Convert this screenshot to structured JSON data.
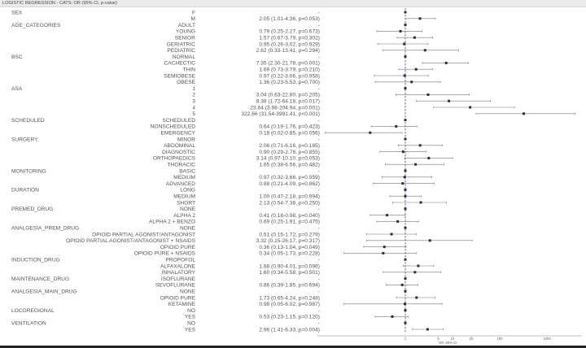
{
  "title": "LOGISTIC REGRESSION - CATS: OR (95% CI, p-value)",
  "chart_data": {
    "type": "forest",
    "title": "LOGISTIC REGRESSION - CATS: OR (95% CI, p-value)",
    "xlabel": "OR, 95% CI",
    "xscale": "log",
    "xticks": [
      1,
      5,
      10,
      25,
      100,
      1000
    ],
    "xtick_labels": [
      "1",
      "5",
      "10",
      "25",
      "100",
      "1000"
    ],
    "reference_line": 1,
    "colors": {
      "point": "#2a2d4a",
      "ci": "#777777",
      "reference": "#333333"
    },
    "rows": [
      {
        "group": "SEX",
        "level": "F",
        "or": 1,
        "text": "-"
      },
      {
        "group": "",
        "level": "M",
        "or": 2.05,
        "lo": 1.01,
        "hi": 4.36,
        "p": "0.053",
        "text": "2.05 (1.01-4.36, p=0.053)"
      },
      {
        "group": "AGE_CATEGORIES",
        "level": "ADULT",
        "or": 1,
        "text": "-"
      },
      {
        "group": "",
        "level": "YOUNG",
        "or": 0.79,
        "lo": 0.25,
        "hi": 2.27,
        "p": "0.673",
        "text": "0.79 (0.25-2.27, p=0.673)"
      },
      {
        "group": "",
        "level": "SENIOR",
        "or": 1.57,
        "lo": 0.67,
        "hi": 3.79,
        "p": "0.302",
        "text": "1.57 (0.67-3.79, p=0.302)"
      },
      {
        "group": "",
        "level": "GERIATRIC",
        "or": 0.95,
        "lo": 0.26,
        "hi": 3.02,
        "p": "0.929",
        "text": "0.95 (0.26-3.02, p=0.929)"
      },
      {
        "group": "",
        "level": "PEDIATRIC",
        "or": 2.62,
        "lo": 0.33,
        "hi": 13.41,
        "p": "0.294",
        "text": "2.62 (0.33-13.41, p=0.294)"
      },
      {
        "group": "BSC",
        "level": "NORMAL",
        "or": 1,
        "text": "-"
      },
      {
        "group": "",
        "level": "CACHECTIC",
        "or": 7.35,
        "lo": 2.3,
        "hi": 21.78,
        "p": "<0.001",
        "text": "7.35 (2.30-21.78, p<0.001)"
      },
      {
        "group": "",
        "level": "THIN",
        "or": 1.69,
        "lo": 0.73,
        "hi": 3.79,
        "p": "0.210",
        "text": "1.69 (0.73-3.79, p=0.210)"
      },
      {
        "group": "",
        "level": "SEMIOBESE",
        "or": 0.97,
        "lo": 0.22,
        "hi": 3.06,
        "p": "0.958",
        "text": "0.97 (0.22-3.06, p=0.958)"
      },
      {
        "group": "",
        "level": "OBESE",
        "or": 1.36,
        "lo": 0.23,
        "hi": 5.53,
        "p": "0.700",
        "text": "1.36 (0.23-5.53, p=0.700)"
      },
      {
        "group": "ASA",
        "level": "1",
        "or": 1,
        "text": "-"
      },
      {
        "group": "",
        "level": "2",
        "or": 3.04,
        "lo": 0.63,
        "hi": 22.8,
        "p": "0.205",
        "text": "3.04 (0.63-22.80, p=0.205)"
      },
      {
        "group": "",
        "level": "3",
        "or": 8.38,
        "lo": 1.72,
        "hi": 64.18,
        "p": "0.017",
        "text": "8.38 (1.72-64.18, p=0.017)"
      },
      {
        "group": "",
        "level": "4",
        "or": 23.64,
        "lo": 3.98,
        "hi": 204.94,
        "p": "0.001",
        "text": "23.64 (3.98-204.94, p=0.001)"
      },
      {
        "group": "",
        "level": "5",
        "or": 322.66,
        "lo": 31.54,
        "hi": 3991.41,
        "p": "<0.001",
        "text": "322.66 (31.54-3991.41, p<0.001)"
      },
      {
        "group": "SCHEDULED",
        "level": "SCHEDULED",
        "or": 1,
        "text": "-"
      },
      {
        "group": "",
        "level": "NONSCHEDULED",
        "or": 0.64,
        "lo": 0.19,
        "hi": 1.76,
        "p": "0.423",
        "text": "0.64 (0.19-1.76, p=0.423)"
      },
      {
        "group": "",
        "level": "EMERGENCY",
        "or": 0.18,
        "lo": 0.02,
        "hi": 0.85,
        "p": "0.056",
        "text": "0.18 (0.02-0.85, p=0.056)"
      },
      {
        "group": "SURGERY",
        "level": "MINOR",
        "or": 1,
        "text": "-"
      },
      {
        "group": "",
        "level": "ABDOMINAL",
        "or": 2.06,
        "lo": 0.71,
        "hi": 6.16,
        "p": "0.185",
        "text": "2.06 (0.71-6.16, p=0.185)"
      },
      {
        "group": "",
        "level": "DIAGNOSTIC",
        "or": 0.9,
        "lo": 0.29,
        "hi": 2.78,
        "p": "0.855",
        "text": "0.90 (0.29-2.78, p=0.855)"
      },
      {
        "group": "",
        "level": "ORTHOPAEDICS",
        "or": 3.14,
        "lo": 0.97,
        "hi": 10.1,
        "p": "0.053",
        "text": "3.14 (0.97-10.10, p=0.053)"
      },
      {
        "group": "",
        "level": "THORACIC",
        "or": 1.65,
        "lo": 0.38,
        "hi": 6.56,
        "p": "0.482",
        "text": "1.65 (0.38-6.56, p=0.482)"
      },
      {
        "group": "MONITORING",
        "level": "BASIC",
        "or": 1,
        "text": "-"
      },
      {
        "group": "",
        "level": "MEDIUM",
        "or": 0.97,
        "lo": 0.32,
        "hi": 3.66,
        "p": "0.959",
        "text": "0.97 (0.32-3.66, p=0.959)"
      },
      {
        "group": "",
        "level": "ADVANCED",
        "or": 0.88,
        "lo": 0.21,
        "hi": 4.09,
        "p": "0.862",
        "text": "0.88 (0.21-4.09, p=0.862)"
      },
      {
        "group": "DURATION",
        "level": "LONG",
        "or": 1,
        "text": "-"
      },
      {
        "group": "",
        "level": "MEDIUM",
        "or": 1.0,
        "lo": 0.47,
        "hi": 2.18,
        "p": "0.994",
        "text": "1.00 (0.47-2.18, p=0.994)"
      },
      {
        "group": "",
        "level": "SHORT",
        "or": 2.13,
        "lo": 0.54,
        "hi": 7.38,
        "p": "0.250",
        "text": "2.13 (0.54-7.38, p=0.250)"
      },
      {
        "group": "PREMED_DRUG",
        "level": "NONE",
        "or": 1,
        "text": "-"
      },
      {
        "group": "",
        "level": "ALPHA 2",
        "or": 0.41,
        "lo": 0.18,
        "hi": 0.98,
        "p": "0.040",
        "text": "0.41 (0.18-0.98, p=0.040)"
      },
      {
        "group": "",
        "level": "ALPHA 2 + BENZO",
        "or": 0.69,
        "lo": 0.25,
        "hi": 1.91,
        "p": "0.475",
        "text": "0.69 (0.25-1.91, p=0.475)"
      },
      {
        "group": "ANALGESIA_PREM_DRUG",
        "level": "NONE",
        "or": 1,
        "text": "-"
      },
      {
        "group": "",
        "level": "OPIOID PARTIAL AGONIST/ANTAGONIST",
        "or": 0.51,
        "lo": 0.15,
        "hi": 1.72,
        "p": "0.279",
        "text": "0.51 (0.15-1.72, p=0.279)"
      },
      {
        "group": "",
        "level": "OPIOID PARTIAL AGONIST/ANTAGONIST + NSAIDS",
        "or": 3.32,
        "lo": 0.15,
        "hi": 26.17,
        "p": "0.317",
        "text": "3.32 (0.15-26.17, p=0.317)"
      },
      {
        "group": "",
        "level": "OPIOID PURE",
        "or": 0.36,
        "lo": 0.13,
        "hi": 1.04,
        "p": "0.049",
        "text": "0.36 (0.13-1.04, p=0.049)"
      },
      {
        "group": "",
        "level": "OPIOID PURE + NSAIDS",
        "or": 0.34,
        "lo": 0.05,
        "hi": 1.73,
        "p": "0.228",
        "text": "0.34 (0.05-1.73, p=0.228)"
      },
      {
        "group": "INDUCTION_DRUG",
        "level": "PROPOFOL",
        "or": 1,
        "text": "-"
      },
      {
        "group": "",
        "level": "ALFAXALONE",
        "or": 1.88,
        "lo": 0.9,
        "hi": 4.01,
        "p": "0.096",
        "text": "1.88 (0.90-4.01, p=0.096)"
      },
      {
        "group": "",
        "level": "INHALATORY",
        "or": 1.6,
        "lo": 0.34,
        "hi": 5.58,
        "p": "0.501",
        "text": "1.60 (0.34-5.58, p=0.501)"
      },
      {
        "group": "MAINTENANCE_DRUG",
        "level": "ISOFLURANE",
        "or": 1,
        "text": "-"
      },
      {
        "group": "",
        "level": "SEVOFLURANE",
        "or": 0.86,
        "lo": 0.39,
        "hi": 1.85,
        "p": "0.694",
        "text": "0.86 (0.39-1.85, p=0.694)"
      },
      {
        "group": "ANALGESIA_MAIN_DRUG",
        "level": "NONE",
        "or": 1,
        "text": "-"
      },
      {
        "group": "",
        "level": "OPIOID PURE",
        "or": 1.73,
        "lo": 0.65,
        "hi": 4.24,
        "p": "0.248",
        "text": "1.73 (0.65-4.24, p=0.248)"
      },
      {
        "group": "",
        "level": "KETAMINE",
        "or": 0.98,
        "lo": 0.05,
        "hi": 6.02,
        "p": "0.987",
        "text": "0.98 (0.05-6.02, p=0.987)"
      },
      {
        "group": "LOCOREGIONAL",
        "level": "NO",
        "or": 1,
        "text": "-"
      },
      {
        "group": "",
        "level": "YES",
        "or": 0.53,
        "lo": 0.23,
        "hi": 1.15,
        "p": "0.120",
        "text": "0.53 (0.23-1.15, p=0.120)"
      },
      {
        "group": "VENTILATION",
        "level": "NO",
        "or": 1,
        "text": "-"
      },
      {
        "group": "",
        "level": "YES",
        "or": 2.96,
        "lo": 1.41,
        "hi": 6.33,
        "p": "0.004",
        "text": "2.96 (1.41-6.33, p=0.004)"
      }
    ]
  }
}
